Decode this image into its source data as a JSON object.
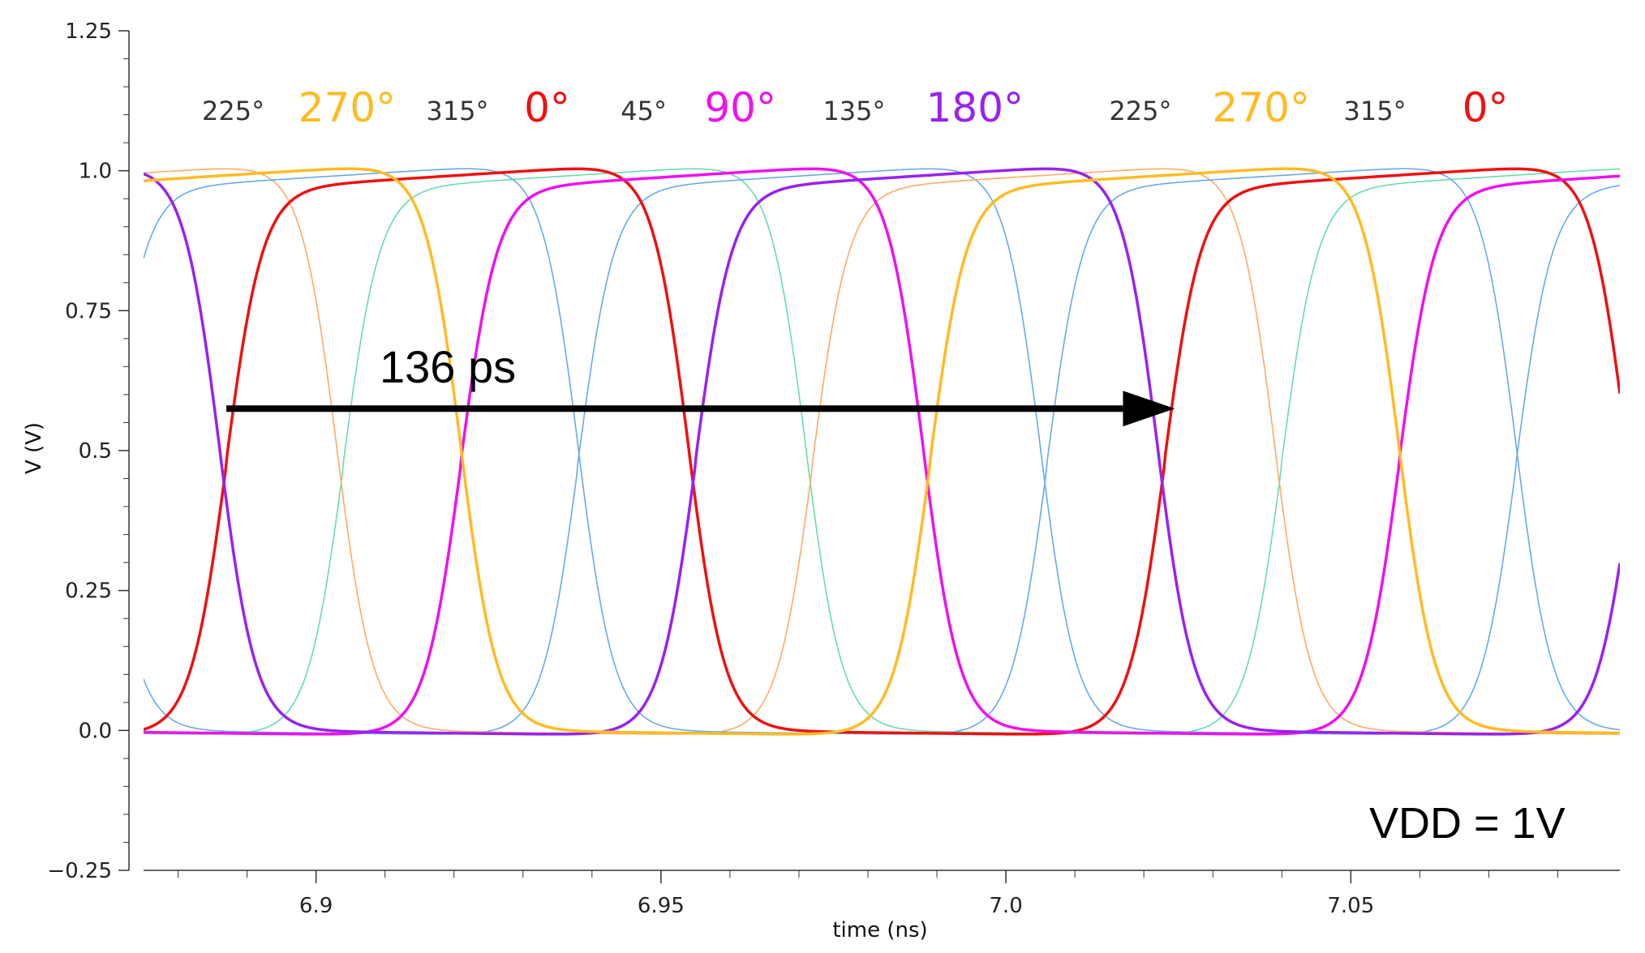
{
  "chart_data": {
    "type": "line",
    "xlabel": "time (ns)",
    "ylabel": "V (V)",
    "xlim": [
      6.875,
      7.089
    ],
    "ylim": [
      -0.25,
      1.25
    ],
    "x_ticks": [
      6.9,
      6.95,
      7.0,
      7.05
    ],
    "x_tick_labels": [
      "6.9",
      "6.95",
      "7.0",
      "7.05"
    ],
    "y_ticks": [
      -0.25,
      0.0,
      0.25,
      0.5,
      0.75,
      1.0,
      1.25
    ],
    "y_tick_labels": [
      "−0.25",
      "0.0",
      "0.25",
      "0.5",
      "0.75",
      "1.0",
      "1.25"
    ],
    "grid": false,
    "period_ns": 0.136,
    "vdd": 1.0,
    "phase_labels": [
      {
        "text": "225°",
        "t": 6.888,
        "color": "#333333",
        "size": "small"
      },
      {
        "text": "270°",
        "t": 6.9045,
        "color": "#ffbb22",
        "size": "large"
      },
      {
        "text": "315°",
        "t": 6.9205,
        "color": "#333333",
        "size": "small"
      },
      {
        "text": "0°",
        "t": 6.9335,
        "color": "#ee1111",
        "size": "large"
      },
      {
        "text": "45°",
        "t": 6.9475,
        "color": "#333333",
        "size": "small"
      },
      {
        "text": "90°",
        "t": 6.9615,
        "color": "#ee11ee",
        "size": "large"
      },
      {
        "text": "135°",
        "t": 6.978,
        "color": "#333333",
        "size": "small"
      },
      {
        "text": "180°",
        "t": 6.9955,
        "color": "#9922ee",
        "size": "large"
      },
      {
        "text": "225°",
        "t": 7.0195,
        "color": "#333333",
        "size": "small"
      },
      {
        "text": "270°",
        "t": 7.037,
        "color": "#ffbb22",
        "size": "large"
      },
      {
        "text": "315°",
        "t": 7.0535,
        "color": "#333333",
        "size": "small"
      },
      {
        "text": "0°",
        "t": 7.0695,
        "color": "#ee1111",
        "size": "large"
      }
    ],
    "series": [
      {
        "name": "0°",
        "color": "#ee1111",
        "width": 3.5,
        "rising_cross_ns": 6.887,
        "falling_cross_ns": 6.954
      },
      {
        "name": "45°",
        "color": "#66ddaa",
        "width": 1.6,
        "rising_cross_ns": 6.904,
        "falling_cross_ns": 6.971
      },
      {
        "name": "90°",
        "color": "#ee11ee",
        "width": 3.5,
        "rising_cross_ns": 6.921,
        "falling_cross_ns": 6.988
      },
      {
        "name": "135°",
        "color": "#66aaee",
        "width": 1.6,
        "rising_cross_ns": 6.938,
        "falling_cross_ns": 7.005
      },
      {
        "name": "180°",
        "color": "#9922ee",
        "width": 3.5,
        "rising_cross_ns": 6.955,
        "falling_cross_ns": 7.022
      },
      {
        "name": "225°",
        "color": "#ffaa66",
        "width": 1.6,
        "rising_cross_ns": 6.972,
        "falling_cross_ns": 7.039
      },
      {
        "name": "270°",
        "color": "#ffbb22",
        "width": 3.5,
        "rising_cross_ns": 6.989,
        "falling_cross_ns": 6.921
      },
      {
        "name": "315°",
        "color": "#66aaee",
        "width": 1.6,
        "rising_cross_ns": 7.006,
        "falling_cross_ns": 6.938
      }
    ],
    "annotations": {
      "period_label": "136 ps",
      "arrow_from_ns": 6.887,
      "arrow_to_ns": 7.0245,
      "arrow_v": 0.575,
      "vdd_label": "VDD = 1V"
    }
  }
}
